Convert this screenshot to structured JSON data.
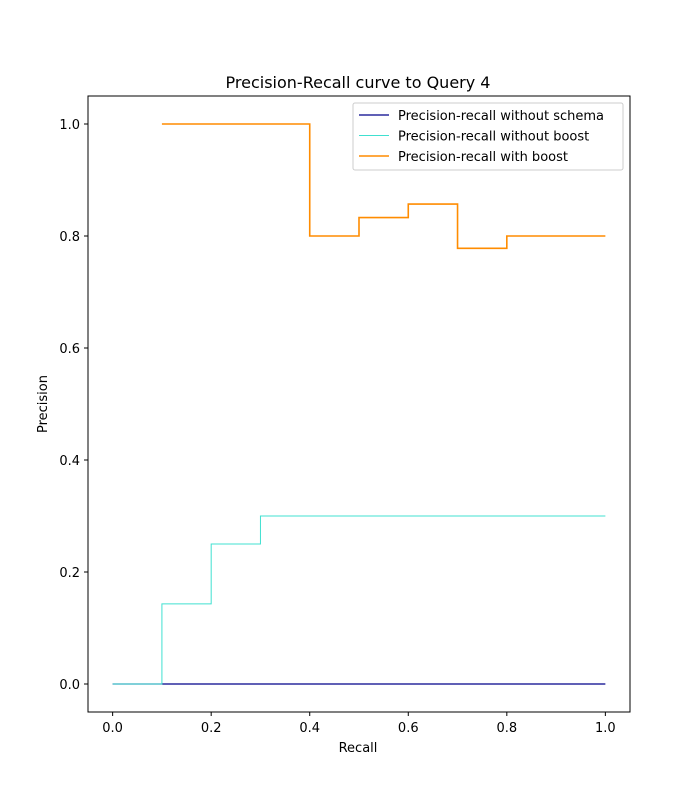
{
  "chart_data": {
    "type": "line",
    "title": "Precision-Recall curve to Query 4",
    "xlabel": "Recall",
    "ylabel": "Precision",
    "xlim": [
      -0.05,
      1.05
    ],
    "ylim": [
      -0.05,
      1.05
    ],
    "xticks": [
      0.0,
      0.2,
      0.4,
      0.6,
      0.8,
      1.0
    ],
    "yticks": [
      0.0,
      0.2,
      0.4,
      0.6,
      0.8,
      1.0
    ],
    "xtick_labels": [
      "0.0",
      "0.2",
      "0.4",
      "0.6",
      "0.8",
      "1.0"
    ],
    "ytick_labels": [
      "0.0",
      "0.2",
      "0.4",
      "0.6",
      "0.8",
      "1.0"
    ],
    "grid": false,
    "legend_position": "top-right",
    "series": [
      {
        "name": "Precision-recall without schema",
        "color": "#00008b",
        "step": "post",
        "x": [
          0.0,
          0.1,
          0.2,
          0.3,
          0.4,
          0.5,
          0.6,
          0.7,
          0.8,
          0.9,
          1.0
        ],
        "y": [
          0.0,
          0.0,
          0.0,
          0.0,
          0.0,
          0.0,
          0.0,
          0.0,
          0.0,
          0.0,
          0.0
        ]
      },
      {
        "name": "Precision-recall without boost",
        "color": "#40e0d0",
        "step": "post",
        "x": [
          0.0,
          0.1,
          0.2,
          0.3,
          0.4,
          0.5,
          0.6,
          0.7,
          0.8,
          0.9,
          1.0
        ],
        "y": [
          0.0,
          0.143,
          0.25,
          0.3,
          0.3,
          0.3,
          0.3,
          0.3,
          0.3,
          0.3,
          0.3
        ]
      },
      {
        "name": "Precision-recall with boost",
        "color": "#ff8c00",
        "step": "post",
        "x": [
          0.1,
          0.2,
          0.3,
          0.4,
          0.5,
          0.6,
          0.7,
          0.8,
          0.9,
          1.0
        ],
        "y": [
          1.0,
          1.0,
          1.0,
          0.8,
          0.833,
          0.857,
          0.778,
          0.8,
          0.8,
          0.8
        ]
      }
    ]
  }
}
